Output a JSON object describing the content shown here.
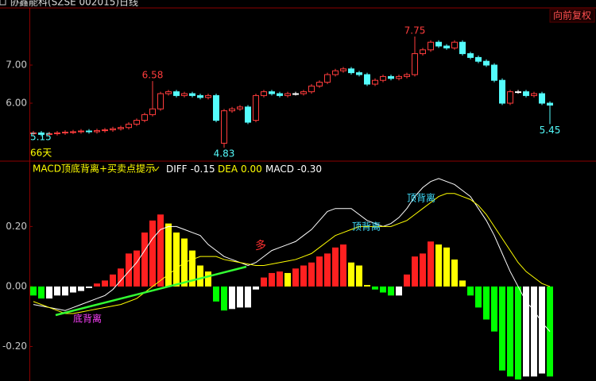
{
  "header": {
    "stock": "协鑫能科(SZSE 002015)",
    "period": "日线",
    "adjust": "向前复权",
    "days": "66天"
  },
  "chart_data": [
    {
      "type": "candlestick",
      "open": [
        5.2,
        5.22,
        5.18,
        5.2,
        5.22,
        5.24,
        5.25,
        5.27,
        5.25,
        5.28,
        5.3,
        5.33,
        5.36,
        5.45,
        5.55,
        5.7,
        5.85,
        6.25,
        6.3,
        6.2,
        6.25,
        6.2,
        6.15,
        6.2,
        4.95,
        5.8,
        5.85,
        5.9,
        5.55,
        6.2,
        6.3,
        6.25,
        6.2,
        6.25,
        6.25,
        6.3,
        6.45,
        6.55,
        6.75,
        6.85,
        6.9,
        6.8,
        6.75,
        6.5,
        6.6,
        6.7,
        6.65,
        6.7,
        6.75,
        7.3,
        7.4,
        7.6,
        7.5,
        7.45,
        7.6,
        7.3,
        7.2,
        7.1,
        7.0,
        6.6,
        6.0,
        6.3,
        6.3,
        6.2,
        6.25,
        6.0
      ],
      "high": [
        5.27,
        5.27,
        5.25,
        5.27,
        5.29,
        5.3,
        5.32,
        5.32,
        5.33,
        5.35,
        5.38,
        5.41,
        5.5,
        5.6,
        5.75,
        6.58,
        6.3,
        6.35,
        6.35,
        6.3,
        6.3,
        6.25,
        6.25,
        6.25,
        5.85,
        5.9,
        5.95,
        5.95,
        6.25,
        6.35,
        6.35,
        6.3,
        6.3,
        6.3,
        6.35,
        6.5,
        6.6,
        6.8,
        6.9,
        6.95,
        6.95,
        6.85,
        6.8,
        6.65,
        6.75,
        6.75,
        6.75,
        6.8,
        7.75,
        7.45,
        7.65,
        7.65,
        7.55,
        7.65,
        7.65,
        7.35,
        7.25,
        7.15,
        7.05,
        6.65,
        6.35,
        6.35,
        6.35,
        6.3,
        6.3,
        6.05
      ],
      "low": [
        5.15,
        5.13,
        5.13,
        5.15,
        5.17,
        5.19,
        5.2,
        5.2,
        5.2,
        5.23,
        5.25,
        5.28,
        5.31,
        5.4,
        5.5,
        5.65,
        5.8,
        6.2,
        6.15,
        6.15,
        6.15,
        6.1,
        6.1,
        5.5,
        4.83,
        5.75,
        5.8,
        5.45,
        5.5,
        6.15,
        6.2,
        6.15,
        6.15,
        6.2,
        6.2,
        6.25,
        6.4,
        6.5,
        6.7,
        6.8,
        6.75,
        6.7,
        6.45,
        6.45,
        6.55,
        6.6,
        6.6,
        6.65,
        6.7,
        7.25,
        7.35,
        7.45,
        7.4,
        7.4,
        7.25,
        7.15,
        7.05,
        6.95,
        6.55,
        5.95,
        5.95,
        6.25,
        6.15,
        6.15,
        5.95,
        5.45
      ],
      "close": [
        5.22,
        5.18,
        5.2,
        5.22,
        5.24,
        5.25,
        5.27,
        5.25,
        5.28,
        5.3,
        5.33,
        5.36,
        5.45,
        5.55,
        5.7,
        5.85,
        6.25,
        6.3,
        6.2,
        6.25,
        6.2,
        6.15,
        6.2,
        5.55,
        5.8,
        5.85,
        5.9,
        5.5,
        6.2,
        6.3,
        6.25,
        6.2,
        6.25,
        6.25,
        6.3,
        6.45,
        6.55,
        6.75,
        6.85,
        6.9,
        6.8,
        6.75,
        6.5,
        6.6,
        6.7,
        6.65,
        6.7,
        6.75,
        7.3,
        7.4,
        7.6,
        7.5,
        7.45,
        7.6,
        7.3,
        7.2,
        7.1,
        7.0,
        6.6,
        6.0,
        6.3,
        6.3,
        6.2,
        6.25,
        6.0,
        5.95
      ],
      "up_color": "#ff3c3c",
      "down_color": "#54fcfc",
      "flat_color": "#ffffff",
      "ylim": [
        4.5,
        8.5
      ],
      "yticks": [
        {
          "value": 6,
          "label": "6.00"
        },
        {
          "value": 7,
          "label": "7.00"
        }
      ]
    },
    {
      "type": "macd",
      "title": "MACD顶底背离+买卖点提示",
      "series": [
        {
          "name": "DIFF",
          "color": "#ffffff",
          "current": -0.15,
          "values": [
            -0.06,
            -0.065,
            -0.07,
            -0.075,
            -0.08,
            -0.07,
            -0.06,
            -0.05,
            -0.04,
            -0.03,
            -0.01,
            0.02,
            0.05,
            0.08,
            0.12,
            0.16,
            0.19,
            0.2,
            0.2,
            0.19,
            0.18,
            0.17,
            0.14,
            0.12,
            0.1,
            0.09,
            0.08,
            0.07,
            0.08,
            0.1,
            0.12,
            0.13,
            0.14,
            0.15,
            0.17,
            0.19,
            0.22,
            0.25,
            0.26,
            0.26,
            0.26,
            0.24,
            0.22,
            0.21,
            0.2,
            0.21,
            0.23,
            0.26,
            0.3,
            0.33,
            0.35,
            0.36,
            0.35,
            0.34,
            0.32,
            0.3,
            0.26,
            0.22,
            0.17,
            0.11,
            0.05,
            0.0,
            -0.05,
            -0.08,
            -0.12,
            -0.15
          ]
        },
        {
          "name": "DEA",
          "color": "#ffff00",
          "current": {
            "value": 0,
            "label": "0.00"
          },
          "values": [
            -0.05,
            -0.06,
            -0.07,
            -0.08,
            -0.09,
            -0.09,
            -0.085,
            -0.08,
            -0.075,
            -0.07,
            -0.065,
            -0.06,
            -0.05,
            -0.04,
            -0.02,
            0.0,
            0.02,
            0.04,
            0.06,
            0.08,
            0.09,
            0.1,
            0.1,
            0.1,
            0.09,
            0.085,
            0.08,
            0.075,
            0.07,
            0.07,
            0.075,
            0.08,
            0.085,
            0.09,
            0.1,
            0.11,
            0.13,
            0.15,
            0.17,
            0.18,
            0.19,
            0.2,
            0.2,
            0.2,
            0.2,
            0.2,
            0.21,
            0.22,
            0.24,
            0.26,
            0.28,
            0.3,
            0.31,
            0.31,
            0.3,
            0.29,
            0.27,
            0.24,
            0.2,
            0.16,
            0.12,
            0.08,
            0.05,
            0.03,
            0.01,
            0.0
          ]
        }
      ],
      "histogram": {
        "name": "MACD",
        "current": {
          "value": -0.3,
          "label": "-0.30"
        },
        "values": [
          -0.03,
          -0.04,
          -0.04,
          -0.03,
          -0.03,
          -0.02,
          -0.015,
          -0.005,
          0.01,
          0.02,
          0.04,
          0.06,
          0.11,
          0.12,
          0.18,
          0.22,
          0.24,
          0.21,
          0.18,
          0.16,
          0.12,
          0.07,
          0.05,
          -0.05,
          -0.08,
          -0.075,
          -0.07,
          -0.07,
          -0.01,
          0.03,
          0.045,
          0.05,
          0.045,
          0.06,
          0.07,
          0.08,
          0.1,
          0.11,
          0.13,
          0.14,
          0.08,
          0.07,
          0.005,
          -0.01,
          -0.02,
          -0.03,
          -0.03,
          0.04,
          0.1,
          0.11,
          0.15,
          0.14,
          0.13,
          0.09,
          0.02,
          -0.03,
          -0.07,
          -0.11,
          -0.15,
          -0.28,
          -0.3,
          -0.31,
          -0.3,
          -0.3,
          -0.29,
          -0.3
        ],
        "colors": {
          "positive_rising": "#ff2020",
          "positive_falling": "#ffff00",
          "negative_falling": "#00ff00",
          "negative_rising": "#ffffff"
        }
      },
      "ylim": [
        -0.315,
        0.41
      ],
      "yticks": [
        {
          "value": 0.2,
          "label": "0.20"
        },
        {
          "value": 0,
          "label": "0.00"
        },
        {
          "value": -0.2,
          "label": "-0.20"
        }
      ],
      "annotations": [
        "多",
        "底背离",
        "顶背离",
        "顶背离"
      ]
    }
  ]
}
